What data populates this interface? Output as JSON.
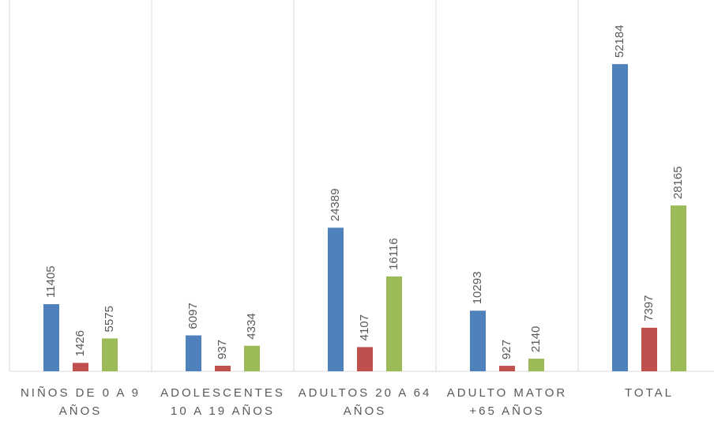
{
  "chart_data": {
    "type": "bar",
    "categories": [
      "NIÑOS DE 0 A 9 AÑOS",
      "ADOLESCENTES 10 A 19 AÑOS",
      "ADULTOS 20 A 64 AÑOS",
      "ADULTO MATOR +65 AÑOS",
      "TOTAL"
    ],
    "series": [
      {
        "color": "#4f81bd",
        "values": [
          11405,
          6097,
          24389,
          10293,
          52184
        ]
      },
      {
        "color": "#c0504d",
        "values": [
          1426,
          937,
          4107,
          927,
          7397
        ]
      },
      {
        "color": "#9bbb59",
        "values": [
          5575,
          4334,
          16116,
          2140,
          28165
        ]
      }
    ],
    "ylim": [
      0,
      62000
    ]
  }
}
